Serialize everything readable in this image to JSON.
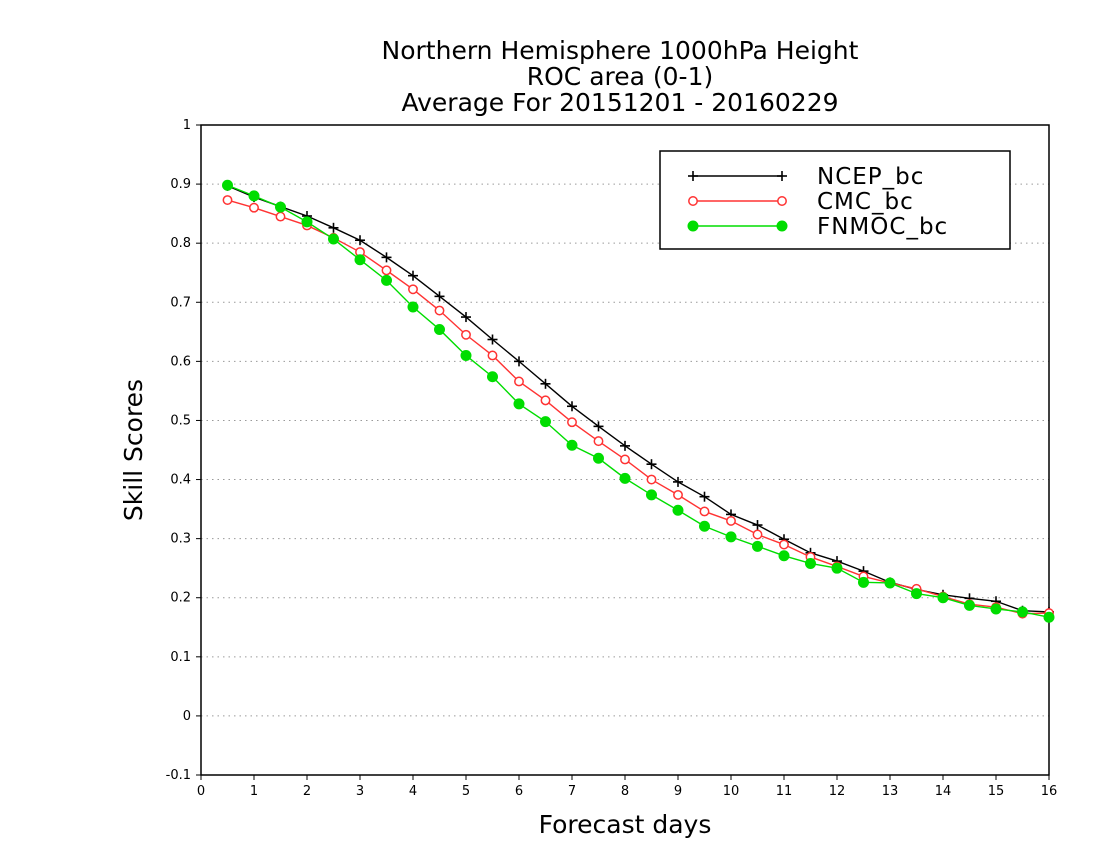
{
  "chart_data": {
    "type": "line",
    "title": [
      "Northern Hemisphere 1000hPa Height",
      "ROC area (0-1)",
      "Average For 20151201 - 20160229"
    ],
    "xlabel": "Forecast days",
    "ylabel": "Skill Scores",
    "xlim": [
      0,
      16
    ],
    "ylim": [
      -0.1,
      1
    ],
    "xticks": [
      0,
      1,
      2,
      3,
      4,
      5,
      6,
      7,
      8,
      9,
      10,
      11,
      12,
      13,
      14,
      15,
      16
    ],
    "yticks": [
      -0.1,
      0,
      0.1,
      0.2,
      0.3,
      0.4,
      0.5,
      0.6,
      0.7,
      0.8,
      0.9,
      1
    ],
    "ytick_labels": [
      "-0.1",
      "0",
      "0.1",
      "0.2",
      "0.3",
      "0.4",
      "0.5",
      "0.6",
      "0.7",
      "0.8",
      "0.9",
      "1"
    ],
    "grid": "horizontal dotted",
    "legend_position": "top-right",
    "x": [
      0.5,
      1,
      1.5,
      2,
      2.5,
      3,
      3.5,
      4,
      4.5,
      5,
      5.5,
      6,
      6.5,
      7,
      7.5,
      8,
      8.5,
      9,
      9.5,
      10,
      10.5,
      11,
      11.5,
      12,
      12.5,
      13,
      13.5,
      14,
      14.5,
      15,
      15.5,
      16
    ],
    "series": [
      {
        "name": "NCEP_bc",
        "color": "#000000",
        "marker": "plus",
        "values": [
          0.897,
          0.878,
          0.862,
          0.846,
          0.826,
          0.805,
          0.776,
          0.745,
          0.71,
          0.675,
          0.637,
          0.6,
          0.562,
          0.524,
          0.49,
          0.457,
          0.426,
          0.396,
          0.371,
          0.341,
          0.323,
          0.299,
          0.276,
          0.262,
          0.245,
          0.226,
          0.214,
          0.205,
          0.199,
          0.194,
          0.178,
          0.176
        ]
      },
      {
        "name": "CMC_bc",
        "color": "#ff3333",
        "marker": "open-circle",
        "values": [
          0.873,
          0.86,
          0.845,
          0.83,
          0.809,
          0.785,
          0.754,
          0.722,
          0.686,
          0.645,
          0.61,
          0.566,
          0.534,
          0.497,
          0.465,
          0.434,
          0.4,
          0.374,
          0.346,
          0.33,
          0.307,
          0.29,
          0.269,
          0.253,
          0.236,
          0.225,
          0.215,
          0.202,
          0.189,
          0.184,
          0.173,
          0.174
        ]
      },
      {
        "name": "FNMOC_bc",
        "color": "#00dd00",
        "marker": "filled-circle",
        "values": [
          0.898,
          0.88,
          0.861,
          0.836,
          0.807,
          0.772,
          0.737,
          0.692,
          0.654,
          0.61,
          0.574,
          0.528,
          0.498,
          0.458,
          0.436,
          0.402,
          0.374,
          0.348,
          0.321,
          0.303,
          0.287,
          0.271,
          0.258,
          0.25,
          0.226,
          0.225,
          0.207,
          0.2,
          0.187,
          0.181,
          0.176,
          0.167
        ]
      }
    ]
  }
}
